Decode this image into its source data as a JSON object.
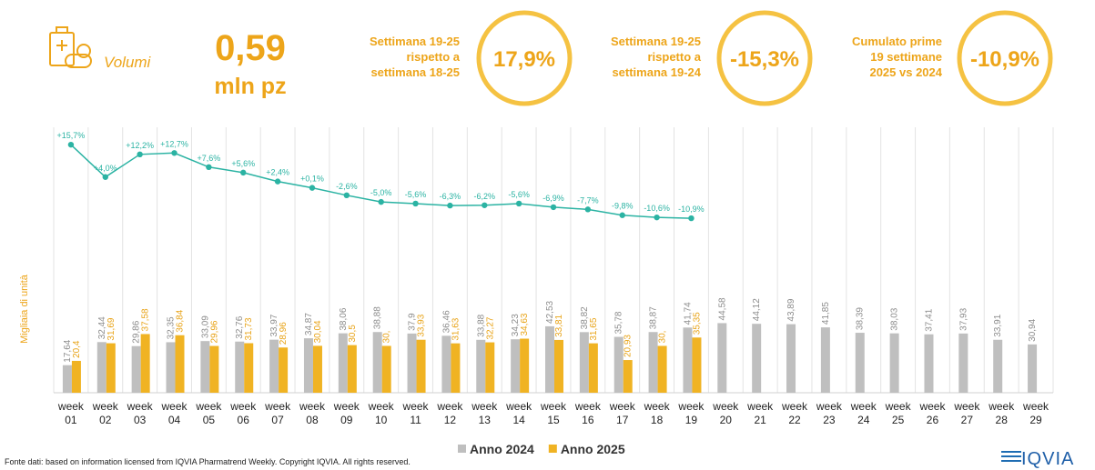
{
  "header": {
    "icon_label": "Volumi",
    "volume": "0,59",
    "volume_unit": "mln pz",
    "kpis": [
      {
        "lines": [
          "Settimana 19-25",
          "rispetto a",
          "settimana 18-25"
        ],
        "value": "17,9%"
      },
      {
        "lines": [
          "Settimana 19-25",
          "rispetto a",
          "settimana 19-24"
        ],
        "value": "-15,3%"
      },
      {
        "lines": [
          "Cumulato prime",
          "19 settimane",
          "2025 vs 2024"
        ],
        "value": "-10,9%"
      }
    ]
  },
  "footer": {
    "source": "Fonte dati: based on information licensed from IQVIA Pharmatrend Weekly. Copyright IQVIA. All rights reserved.",
    "logo": "IQVIA"
  },
  "chart_data": {
    "type": "bar",
    "y_label": "Migliaia di unità",
    "legend": "bottom",
    "grid": "vertical",
    "ylim": [
      0,
      170
    ],
    "y2lim": [
      -74,
      22
    ],
    "categories": [
      "week 01",
      "week 02",
      "week 03",
      "week 04",
      "week 05",
      "week 06",
      "week 07",
      "week 08",
      "week 09",
      "week 10",
      "week 11",
      "week 12",
      "week 13",
      "week 14",
      "week 15",
      "week 16",
      "week 17",
      "week 18",
      "week 19",
      "week 20",
      "week 21",
      "week 22",
      "week 23",
      "week 24",
      "week 25",
      "week 26",
      "week 27",
      "week 28",
      "week 29"
    ],
    "series": [
      {
        "name": "Anno 2024",
        "color": "#bfbfbf",
        "label_color": "#8c8c8c",
        "values": [
          17.64,
          32.44,
          29.86,
          32.35,
          33.09,
          32.76,
          33.97,
          34.87,
          38.06,
          38.88,
          37.9,
          36.46,
          33.88,
          34.23,
          42.53,
          38.82,
          35.78,
          38.87,
          41.74,
          44.58,
          44.12,
          43.89,
          41.85,
          38.39,
          38.03,
          37.41,
          37.93,
          33.91,
          30.94
        ],
        "value_labels": [
          "17,64",
          "32,44",
          "29,86",
          "32,35",
          "33,09",
          "32,76",
          "33,97",
          "34,87",
          "38,06",
          "38,88",
          "37,9",
          "36,46",
          "33,88",
          "34,23",
          "42,53",
          "38,82",
          "35,78",
          "38,87",
          "41,74",
          "44,58",
          "44,12",
          "43,89",
          "41,85",
          "38,39",
          "38,03",
          "37,41",
          "37,93",
          "33,91",
          "30,94"
        ]
      },
      {
        "name": "Anno 2025",
        "color": "#f0b323",
        "label_color": "#e8a317",
        "values": [
          20.4,
          31.69,
          37.58,
          36.84,
          29.96,
          31.73,
          28.96,
          30.04,
          30.5,
          30,
          33.93,
          31.63,
          32.27,
          34.63,
          33.81,
          31.65,
          20.93,
          30,
          35.35,
          null,
          null,
          null,
          null,
          null,
          null,
          null,
          null,
          null,
          null
        ],
        "value_labels": [
          "20,4",
          "31,69",
          "37,58",
          "36,84",
          "29,96",
          "31,73",
          "28,96",
          "30,04",
          "30,5",
          "30,",
          "33,93",
          "31,63",
          "32,27",
          "34,63",
          "33,81",
          "31,65",
          "20,93",
          "30,",
          "35,35",
          null,
          null,
          null,
          null,
          null,
          null,
          null,
          null,
          null,
          null
        ]
      },
      {
        "type": "line",
        "axis": "y2",
        "color": "#2bb3a3",
        "values": [
          15.7,
          4.0,
          12.2,
          12.7,
          7.6,
          5.6,
          2.4,
          0.1,
          -2.6,
          -5.0,
          -5.6,
          -6.3,
          -6.2,
          -5.6,
          -6.9,
          -7.7,
          -9.8,
          -10.6,
          -10.9,
          null,
          null,
          null,
          null,
          null,
          null,
          null,
          null,
          null,
          null
        ],
        "value_labels": [
          "+15,7%",
          "+4,0%",
          "+12,2%",
          "+12,7%",
          "+7,6%",
          "+5,6%",
          "+2,4%",
          "+0,1%",
          "-2,6%",
          "-5,0%",
          "-5,6%",
          "-6,3%",
          "-6,2%",
          "-5,6%",
          "-6,9%",
          "-7,7%",
          "-9,8%",
          "-10,6%",
          "-10,9%",
          null,
          null,
          null,
          null,
          null,
          null,
          null,
          null,
          null,
          null
        ]
      }
    ]
  }
}
